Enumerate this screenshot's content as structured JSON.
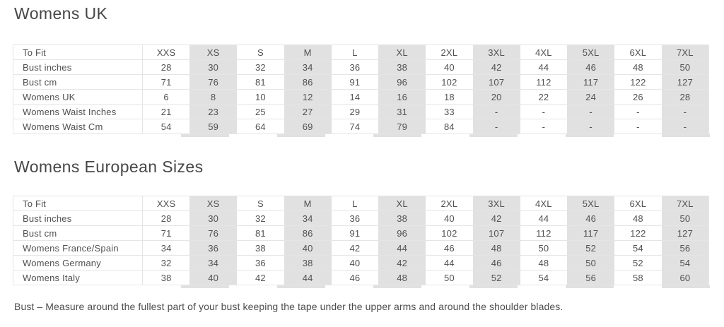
{
  "note": "Bust – Measure around the fullest part of your bust keeping the tape under the upper arms and around the shoulder blades.",
  "colors": {
    "shade": "#e1e1e1",
    "border": "#e5e5e5",
    "text": "#515151",
    "title": "#474747"
  },
  "tables": [
    {
      "name": "womens-uk",
      "title": "Womens UK",
      "header_label": "To Fit",
      "columns": [
        "XXS",
        "XS",
        "S",
        "M",
        "L",
        "XL",
        "2XL",
        "3XL",
        "4XL",
        "5XL",
        "6XL",
        "7XL"
      ],
      "shaded_columns": [
        "XS",
        "M",
        "XL",
        "3XL",
        "5XL",
        "7XL"
      ],
      "rows": [
        {
          "label": "Bust inches",
          "values": [
            "28",
            "30",
            "32",
            "34",
            "36",
            "38",
            "40",
            "42",
            "44",
            "46",
            "48",
            "50"
          ]
        },
        {
          "label": "Bust cm",
          "values": [
            "71",
            "76",
            "81",
            "86",
            "91",
            "96",
            "102",
            "107",
            "112",
            "117",
            "122",
            "127"
          ]
        },
        {
          "label": "Womens UK",
          "values": [
            "6",
            "8",
            "10",
            "12",
            "14",
            "16",
            "18",
            "20",
            "22",
            "24",
            "26",
            "28"
          ]
        },
        {
          "label": "Womens Waist Inches",
          "values": [
            "21",
            "23",
            "25",
            "27",
            "29",
            "31",
            "33",
            "-",
            "-",
            "-",
            "-",
            "-"
          ]
        },
        {
          "label": "Womens Waist Cm",
          "values": [
            "54",
            "59",
            "64",
            "69",
            "74",
            "79",
            "84",
            "-",
            "-",
            "-",
            "-",
            "-"
          ]
        }
      ]
    },
    {
      "name": "womens-european-sizes",
      "title": "Womens European Sizes",
      "header_label": "To Fit",
      "columns": [
        "XXS",
        "XS",
        "S",
        "M",
        "L",
        "XL",
        "2XL",
        "3XL",
        "4XL",
        "5XL",
        "6XL",
        "7XL"
      ],
      "shaded_columns": [
        "XS",
        "M",
        "XL",
        "3XL",
        "5XL",
        "7XL"
      ],
      "rows": [
        {
          "label": "Bust inches",
          "values": [
            "28",
            "30",
            "32",
            "34",
            "36",
            "38",
            "40",
            "42",
            "44",
            "46",
            "48",
            "50"
          ]
        },
        {
          "label": "Bust cm",
          "values": [
            "71",
            "76",
            "81",
            "86",
            "91",
            "96",
            "102",
            "107",
            "112",
            "117",
            "122",
            "127"
          ]
        },
        {
          "label": "Womens France/Spain",
          "values": [
            "34",
            "36",
            "38",
            "40",
            "42",
            "44",
            "46",
            "48",
            "50",
            "52",
            "54",
            "56"
          ]
        },
        {
          "label": "Womens Germany",
          "values": [
            "32",
            "34",
            "36",
            "38",
            "40",
            "42",
            "44",
            "46",
            "48",
            "50",
            "52",
            "54"
          ]
        },
        {
          "label": "Womens Italy",
          "values": [
            "38",
            "40",
            "42",
            "44",
            "46",
            "48",
            "50",
            "52",
            "54",
            "56",
            "58",
            "60"
          ]
        }
      ]
    }
  ]
}
